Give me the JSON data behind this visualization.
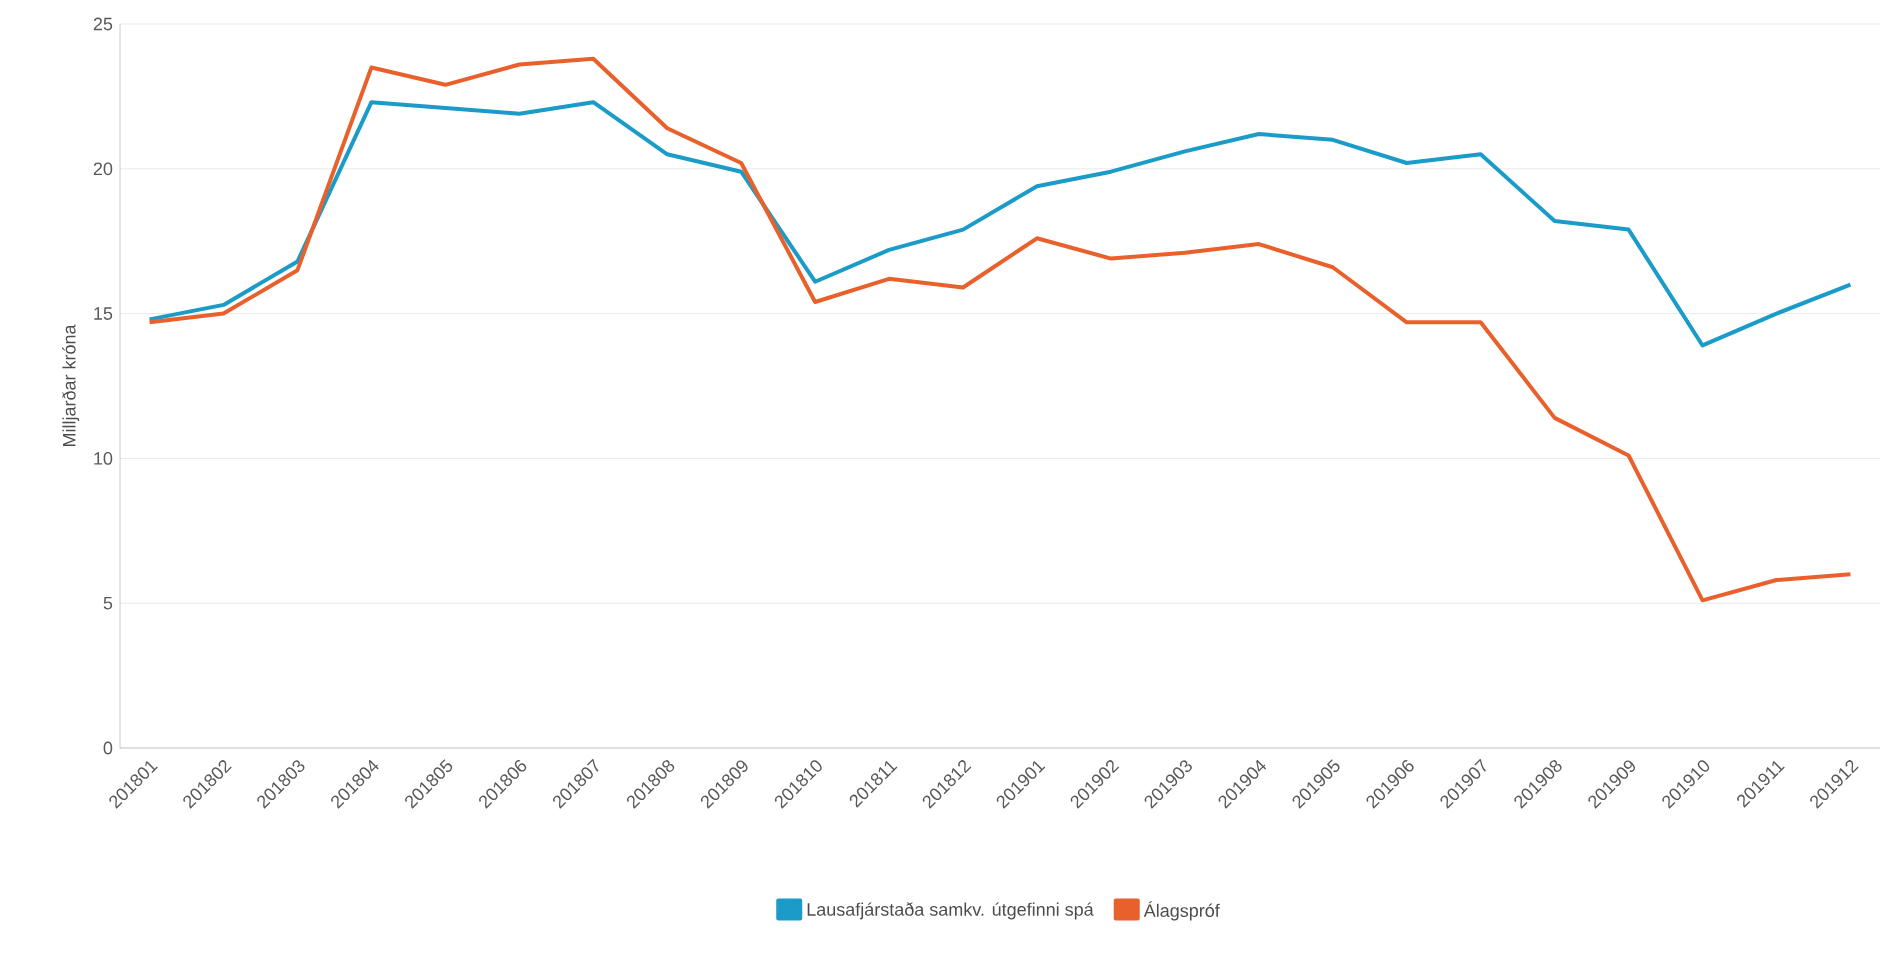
{
  "chart_data": {
    "type": "line",
    "ylabel": "Milljarðar króna",
    "categories": [
      "201801",
      "201802",
      "201803",
      "201804",
      "201805",
      "201806",
      "201807",
      "201808",
      "201809",
      "201810",
      "201811",
      "201812",
      "201901",
      "201902",
      "201903",
      "201904",
      "201905",
      "201906",
      "201907",
      "201908",
      "201909",
      "201910",
      "201911",
      "201912"
    ],
    "series": [
      {
        "name": "Lausafjárstaða samkv. útgefinni spá",
        "color": "#1a9bc8",
        "values": [
          14.8,
          15.3,
          16.8,
          22.3,
          22.1,
          21.9,
          22.3,
          20.5,
          19.9,
          16.1,
          17.2,
          17.9,
          19.4,
          19.9,
          20.6,
          21.2,
          21.0,
          20.2,
          20.5,
          18.2,
          17.9,
          13.9,
          15.0,
          16.0
        ]
      },
      {
        "name": "Álagspróf",
        "color": "#e8612c",
        "values": [
          14.7,
          15.0,
          16.5,
          23.5,
          22.9,
          23.6,
          23.8,
          21.4,
          20.2,
          15.4,
          16.2,
          15.9,
          17.6,
          16.9,
          17.1,
          17.4,
          16.6,
          14.7,
          14.7,
          11.4,
          10.1,
          5.1,
          5.8,
          6.0
        ]
      }
    ],
    "ylim": [
      0,
      25
    ],
    "yticks": [
      0,
      5,
      10,
      15,
      20,
      25
    ],
    "grid": "y",
    "legend": "bottom",
    "marker": "none",
    "line_style": "solid"
  }
}
